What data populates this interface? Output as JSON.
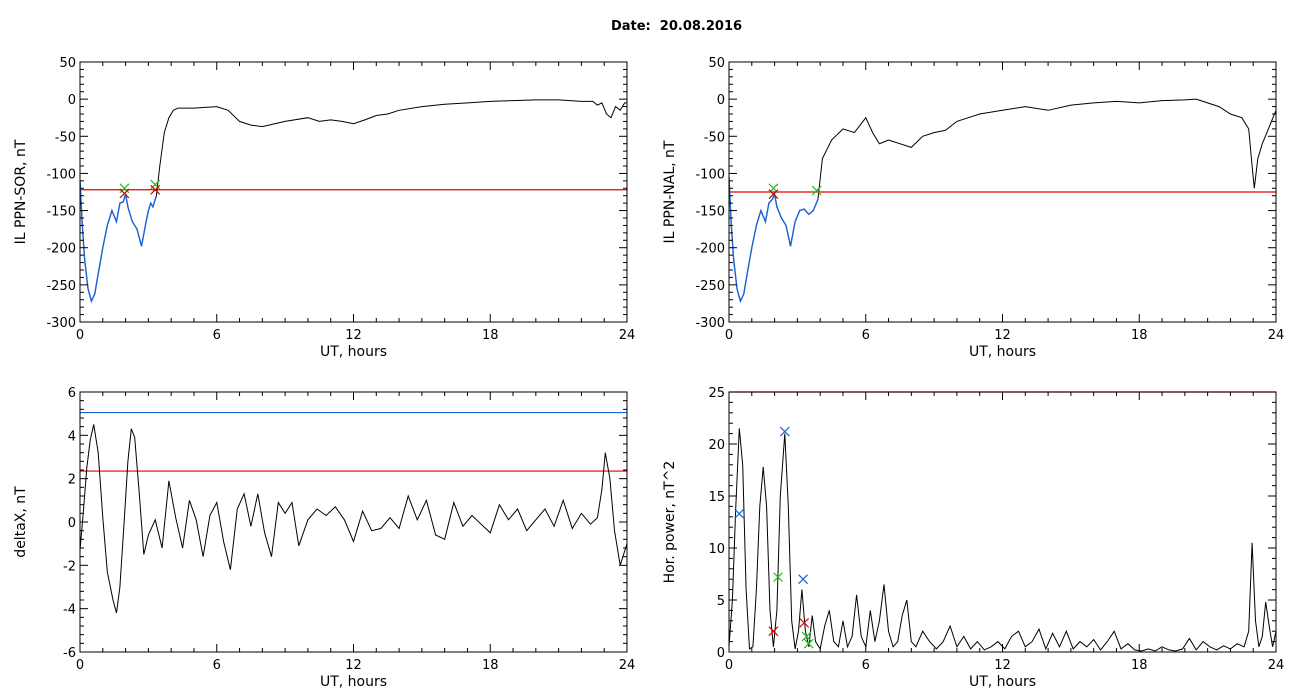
{
  "page": {
    "title": "Date:  20.08.2016"
  },
  "colors": {
    "axis": "#000000",
    "trace": "#000000",
    "highlight": "#1a64d6",
    "threshold_red": "#e00000",
    "threshold_blue": "#1a64d6",
    "marker_green": "#22bb22",
    "marker_red": "#cc0000",
    "marker_blue": "#1a64d6"
  },
  "chart_data": [
    {
      "id": "sor",
      "type": "line",
      "xlabel": "UT, hours",
      "ylabel": "IL PPN-SOR, nT",
      "xlim": [
        0,
        24
      ],
      "ylim": [
        -300,
        50
      ],
      "xticks": [
        0,
        6,
        12,
        18,
        24
      ],
      "yticks": [
        -300,
        -250,
        -200,
        -150,
        -100,
        -50,
        0,
        50
      ],
      "threshold": {
        "y": -122,
        "color": "#e00000"
      },
      "series": [
        {
          "x": [
            0,
            0.1,
            0.2,
            0.35,
            0.5,
            0.65,
            0.8,
            1.0,
            1.2,
            1.4,
            1.6,
            1.75,
            1.9,
            2.0,
            2.1,
            2.3,
            2.5,
            2.7,
            2.9,
            3.0,
            3.1,
            3.2,
            3.35,
            3.5,
            3.7,
            3.9,
            4.1,
            4.3,
            5,
            6,
            6.5,
            7,
            7.5,
            8,
            9,
            10,
            10.5,
            11,
            11.5,
            12,
            12.5,
            13,
            13.5,
            14,
            15,
            16,
            17,
            18,
            19,
            20,
            21,
            21.5,
            22,
            22.5,
            22.7,
            22.9,
            23.1,
            23.3,
            23.5,
            23.7,
            23.9,
            24
          ],
          "y": [
            -110,
            -170,
            -215,
            -255,
            -272,
            -262,
            -235,
            -200,
            -170,
            -150,
            -165,
            -140,
            -138,
            -128,
            -145,
            -165,
            -175,
            -198,
            -165,
            -150,
            -140,
            -145,
            -130,
            -90,
            -45,
            -25,
            -15,
            -12,
            -12,
            -10,
            -15,
            -30,
            -35,
            -37,
            -30,
            -25,
            -30,
            -28,
            -30,
            -33,
            -28,
            -22,
            -20,
            -15,
            -10,
            -7,
            -5,
            -3,
            -2,
            -1,
            -1,
            -2,
            -3,
            -3,
            -8,
            -5,
            -20,
            -25,
            -10,
            -15,
            -5,
            -5
          ]
        }
      ],
      "highlight": {
        "x_from": 0,
        "x_to": 3.4
      },
      "markers": [
        {
          "x": 1.95,
          "y": -120,
          "color": "#22bb22"
        },
        {
          "x": 1.95,
          "y": -127,
          "color": "#cc0000"
        },
        {
          "x": 3.3,
          "y": -115,
          "color": "#22bb22"
        },
        {
          "x": 3.3,
          "y": -122,
          "color": "#cc0000"
        }
      ]
    },
    {
      "id": "nal",
      "type": "line",
      "xlabel": "UT, hours",
      "ylabel": "IL PPN-NAL, nT",
      "xlim": [
        0,
        24
      ],
      "ylim": [
        -300,
        50
      ],
      "xticks": [
        0,
        6,
        12,
        18,
        24
      ],
      "yticks": [
        -300,
        -250,
        -200,
        -150,
        -100,
        -50,
        0,
        50
      ],
      "threshold": {
        "y": -125,
        "color": "#e00000"
      },
      "series": [
        {
          "x": [
            0,
            0.1,
            0.2,
            0.35,
            0.5,
            0.65,
            0.8,
            1.0,
            1.2,
            1.4,
            1.6,
            1.75,
            1.9,
            2.0,
            2.1,
            2.3,
            2.5,
            2.7,
            2.9,
            3.1,
            3.3,
            3.5,
            3.7,
            3.9,
            4.1,
            4.5,
            5,
            5.5,
            6,
            6.3,
            6.6,
            7,
            7.5,
            8,
            8.5,
            9,
            9.5,
            10,
            10.5,
            11,
            12,
            13,
            14,
            15,
            16,
            17,
            18,
            19,
            20,
            20.5,
            21,
            21.5,
            22,
            22.5,
            22.8,
            22.95,
            23.05,
            23.2,
            23.4,
            23.6,
            23.8,
            24
          ],
          "y": [
            -105,
            -170,
            -215,
            -255,
            -272,
            -262,
            -235,
            -200,
            -170,
            -150,
            -165,
            -140,
            -135,
            -128,
            -145,
            -160,
            -170,
            -198,
            -165,
            -150,
            -148,
            -155,
            -150,
            -135,
            -80,
            -55,
            -40,
            -45,
            -25,
            -45,
            -60,
            -55,
            -60,
            -65,
            -50,
            -45,
            -42,
            -30,
            -25,
            -20,
            -15,
            -10,
            -15,
            -8,
            -5,
            -3,
            -5,
            -2,
            -1,
            0,
            -5,
            -10,
            -20,
            -25,
            -40,
            -90,
            -120,
            -80,
            -60,
            -45,
            -30,
            -15
          ]
        }
      ],
      "highlight": {
        "x_from": 0,
        "x_to": 3.9
      },
      "markers": [
        {
          "x": 1.95,
          "y": -120,
          "color": "#22bb22"
        },
        {
          "x": 1.95,
          "y": -128,
          "color": "#cc0000"
        },
        {
          "x": 3.85,
          "y": -123,
          "color": "#22bb22"
        }
      ]
    },
    {
      "id": "deltax",
      "type": "line",
      "xlabel": "UT, hours",
      "ylabel": "deltaX, nT",
      "xlim": [
        0,
        24
      ],
      "ylim": [
        -6,
        6
      ],
      "xticks": [
        0,
        6,
        12,
        18,
        24
      ],
      "yticks": [
        -6,
        -4,
        -2,
        0,
        2,
        4,
        6
      ],
      "thresholds": [
        {
          "y": 5.05,
          "color": "#1a64d6"
        },
        {
          "y": 2.35,
          "color": "#e00000"
        }
      ],
      "series": [
        {
          "x": [
            0,
            0.15,
            0.3,
            0.45,
            0.6,
            0.8,
            1.0,
            1.2,
            1.45,
            1.6,
            1.75,
            1.95,
            2.1,
            2.25,
            2.4,
            2.6,
            2.8,
            3.0,
            3.3,
            3.6,
            3.9,
            4.2,
            4.5,
            4.8,
            5.1,
            5.4,
            5.7,
            6.0,
            6.3,
            6.6,
            6.9,
            7.2,
            7.5,
            7.8,
            8.1,
            8.4,
            8.7,
            9.0,
            9.3,
            9.6,
            10.0,
            10.4,
            10.8,
            11.2,
            11.6,
            12.0,
            12.4,
            12.8,
            13.2,
            13.6,
            14.0,
            14.4,
            14.8,
            15.2,
            15.6,
            16.0,
            16.4,
            16.8,
            17.2,
            17.6,
            18.0,
            18.4,
            18.8,
            19.2,
            19.6,
            20.0,
            20.4,
            20.8,
            21.2,
            21.6,
            22.0,
            22.4,
            22.7,
            22.9,
            23.05,
            23.25,
            23.45,
            23.7,
            24
          ],
          "y": [
            -1.3,
            0.5,
            2.5,
            3.8,
            4.5,
            3.2,
            0.2,
            -2.3,
            -3.6,
            -4.2,
            -3.0,
            0.2,
            2.8,
            4.3,
            3.9,
            1.3,
            -1.5,
            -0.6,
            0.1,
            -1.2,
            1.9,
            0.2,
            -1.2,
            1.0,
            0.1,
            -1.6,
            0.3,
            0.9,
            -0.9,
            -2.2,
            0.6,
            1.3,
            -0.2,
            1.3,
            -0.5,
            -1.6,
            0.9,
            0.4,
            0.9,
            -1.1,
            0.1,
            0.6,
            0.3,
            0.7,
            0.1,
            -0.9,
            0.5,
            -0.4,
            -0.3,
            0.2,
            -0.3,
            1.2,
            0.1,
            1.0,
            -0.6,
            -0.8,
            0.9,
            -0.2,
            0.3,
            -0.1,
            -0.5,
            0.8,
            0.1,
            0.6,
            -0.4,
            0.1,
            0.6,
            -0.2,
            1.0,
            -0.3,
            0.4,
            -0.1,
            0.2,
            1.5,
            3.2,
            2.0,
            -0.4,
            -2.0,
            -1.0
          ]
        }
      ]
    },
    {
      "id": "hpower",
      "type": "line",
      "xlabel": "UT, hours",
      "ylabel": "Hor. power, nT^2",
      "xlim": [
        0,
        24
      ],
      "ylim": [
        0,
        25
      ],
      "xticks": [
        0,
        6,
        12,
        18,
        24
      ],
      "yticks": [
        0,
        5,
        10,
        15,
        20,
        25
      ],
      "threshold": {
        "y": 25,
        "color": "#e00000"
      },
      "series": [
        {
          "x": [
            0,
            0.15,
            0.3,
            0.45,
            0.6,
            0.75,
            0.9,
            1.05,
            1.2,
            1.35,
            1.5,
            1.65,
            1.8,
            1.95,
            2.1,
            2.25,
            2.45,
            2.6,
            2.75,
            2.9,
            3.05,
            3.2,
            3.35,
            3.5,
            3.65,
            3.8,
            4.0,
            4.2,
            4.4,
            4.6,
            4.8,
            5.0,
            5.2,
            5.4,
            5.6,
            5.8,
            6.0,
            6.2,
            6.4,
            6.6,
            6.8,
            7.0,
            7.2,
            7.4,
            7.6,
            7.8,
            8.0,
            8.2,
            8.5,
            8.8,
            9.1,
            9.4,
            9.7,
            10.0,
            10.3,
            10.6,
            10.9,
            11.2,
            11.5,
            11.8,
            12.1,
            12.4,
            12.7,
            13.0,
            13.3,
            13.6,
            13.9,
            14.2,
            14.5,
            14.8,
            15.1,
            15.4,
            15.7,
            16.0,
            16.3,
            16.6,
            16.9,
            17.2,
            17.5,
            17.8,
            18.1,
            18.4,
            18.7,
            19.0,
            19.3,
            19.6,
            19.9,
            20.2,
            20.5,
            20.8,
            21.1,
            21.4,
            21.7,
            22.0,
            22.3,
            22.6,
            22.8,
            22.95,
            23.1,
            23.25,
            23.4,
            23.55,
            23.7,
            23.85,
            24
          ],
          "y": [
            0.5,
            5,
            14,
            21.5,
            18,
            6,
            0.3,
            0.5,
            6,
            14,
            17.8,
            14,
            4,
            0.5,
            4,
            15,
            21,
            14,
            3,
            0.3,
            2,
            6,
            2,
            0.5,
            3.5,
            1,
            0.3,
            2.5,
            4,
            1,
            0.5,
            3,
            0.5,
            1.5,
            5.5,
            1.5,
            0.5,
            4,
            1,
            3,
            6.5,
            2,
            0.5,
            1,
            3.5,
            5,
            1,
            0.5,
            2,
            1,
            0.3,
            1,
            2.5,
            0.5,
            1.5,
            0.3,
            1,
            0.2,
            0.5,
            1,
            0.3,
            1.5,
            2,
            0.5,
            1,
            2.2,
            0.3,
            1.8,
            0.5,
            2,
            0.3,
            1,
            0.5,
            1.2,
            0.2,
            1,
            2,
            0.3,
            0.8,
            0.2,
            0.1,
            0.3,
            0.1,
            0.5,
            0.2,
            0.1,
            0.3,
            1.3,
            0.2,
            1,
            0.5,
            0.2,
            0.6,
            0.3,
            0.8,
            0.5,
            2,
            10.5,
            3,
            0.5,
            1.5,
            4.8,
            2.5,
            0.5,
            2
          ]
        }
      ],
      "markers": [
        {
          "x": 0.45,
          "y": 13.3,
          "color": "#1a64d6"
        },
        {
          "x": 1.95,
          "y": 2.0,
          "color": "#cc0000"
        },
        {
          "x": 2.15,
          "y": 7.2,
          "color": "#22bb22"
        },
        {
          "x": 2.45,
          "y": 21.2,
          "color": "#1a64d6"
        },
        {
          "x": 3.25,
          "y": 7.0,
          "color": "#1a64d6"
        },
        {
          "x": 3.3,
          "y": 2.8,
          "color": "#cc0000"
        },
        {
          "x": 3.4,
          "y": 1.5,
          "color": "#22bb22"
        },
        {
          "x": 3.5,
          "y": 0.8,
          "color": "#22bb22"
        }
      ]
    }
  ]
}
